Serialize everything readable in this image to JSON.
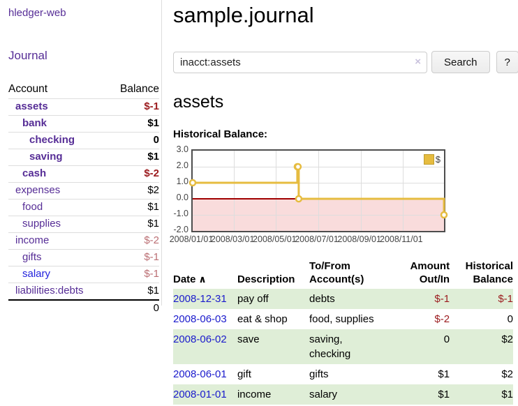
{
  "app": {
    "title": "hledger-web",
    "nav_journal": "Journal"
  },
  "sidebar": {
    "header": {
      "account": "Account",
      "balance": "Balance"
    },
    "accounts": [
      {
        "name": "assets",
        "indent": 1,
        "bold": true,
        "balance": "$-1",
        "neg": "strong"
      },
      {
        "name": "bank",
        "indent": 2,
        "bold": true,
        "balance": "$1",
        "neg": "none"
      },
      {
        "name": "checking",
        "indent": 3,
        "bold": true,
        "balance": "0",
        "neg": "none"
      },
      {
        "name": "saving",
        "indent": 3,
        "bold": true,
        "balance": "$1",
        "neg": "none"
      },
      {
        "name": "cash",
        "indent": 2,
        "bold": true,
        "balance": "$-2",
        "neg": "strong"
      },
      {
        "name": "expenses",
        "indent": 1,
        "bold": false,
        "balance": "$2",
        "neg": "none"
      },
      {
        "name": "food",
        "indent": 2,
        "bold": false,
        "balance": "$1",
        "neg": "none"
      },
      {
        "name": "supplies",
        "indent": 2,
        "bold": false,
        "balance": "$1",
        "neg": "none"
      },
      {
        "name": "income",
        "indent": 1,
        "bold": false,
        "balance": "$-2",
        "neg": "soft"
      },
      {
        "name": "gifts",
        "indent": 2,
        "bold": false,
        "balance": "$-1",
        "neg": "soft"
      },
      {
        "name": "salary",
        "indent": 2,
        "bold": false,
        "balance": "$-1",
        "neg": "soft",
        "link": "blue"
      },
      {
        "name": "liabilities:debts",
        "indent": 1,
        "bold": false,
        "balance": "$1",
        "neg": "none"
      }
    ],
    "total": "0"
  },
  "header": {
    "title": "sample.journal"
  },
  "search": {
    "value": "inacct:assets",
    "clear_icon": "×",
    "button_label": "Search",
    "help_label": "?"
  },
  "account_page": {
    "heading": "assets",
    "chart_label": "Historical Balance:"
  },
  "chart_data": {
    "type": "line",
    "mode": "steps",
    "title": "Historical Balance:",
    "legend": "$",
    "legend_position": "top-right",
    "grid": true,
    "xlim": [
      "2008-01-01",
      "2008-12-31"
    ],
    "ylim": [
      -2.0,
      3.0
    ],
    "y_ticks": [
      "3.0",
      "2.0",
      "1.0",
      "0.0",
      "-1.0",
      "-2.0"
    ],
    "x_ticks": [
      "2008/01/01",
      "2008/03/01",
      "2008/05/01",
      "2008/07/01",
      "2008/09/01",
      "2008/11/01"
    ],
    "series": [
      {
        "name": "$",
        "color": "#e6bc40",
        "marker": "open-circle",
        "points": [
          {
            "x": "2008-01-01",
            "y": 1
          },
          {
            "x": "2008-06-01",
            "y": 2
          },
          {
            "x": "2008-06-02",
            "y": 2
          },
          {
            "x": "2008-06-03",
            "y": 0
          },
          {
            "x": "2008-12-31",
            "y": -1
          }
        ]
      }
    ],
    "negative_region_color": "#f9dcdc",
    "zero_line_color": "#a00000"
  },
  "register": {
    "columns": [
      {
        "label": "Date",
        "sorted": "asc"
      },
      {
        "label": "Description"
      },
      {
        "label": "To/From Account(s)"
      },
      {
        "label": "Amount Out/In"
      },
      {
        "label": "Historical Balance"
      }
    ],
    "sort_icon": "∧",
    "rows": [
      {
        "date": "2008-12-31",
        "description": "pay off",
        "accounts": "debts",
        "amount": "$-1",
        "amount_neg": true,
        "balance": "$-1",
        "balance_neg": true
      },
      {
        "date": "2008-06-03",
        "description": "eat & shop",
        "accounts": "food, supplies",
        "amount": "$-2",
        "amount_neg": true,
        "balance": "0",
        "balance_neg": false
      },
      {
        "date": "2008-06-02",
        "description": "save",
        "accounts": "saving, checking",
        "amount": "0",
        "amount_neg": false,
        "balance": "$2",
        "balance_neg": false
      },
      {
        "date": "2008-06-01",
        "description": "gift",
        "accounts": "gifts",
        "amount": "$1",
        "amount_neg": false,
        "balance": "$2",
        "balance_neg": false
      },
      {
        "date": "2008-01-01",
        "description": "income",
        "accounts": "salary",
        "amount": "$1",
        "amount_neg": false,
        "balance": "$1",
        "balance_neg": false
      }
    ]
  }
}
